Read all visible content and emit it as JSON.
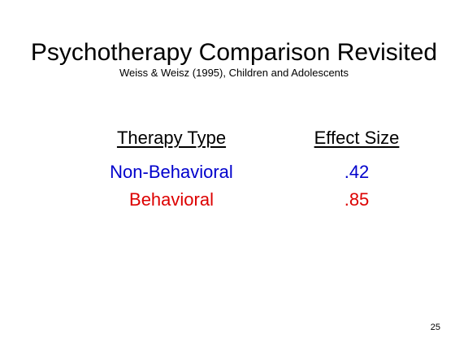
{
  "slide": {
    "title": "Psychotherapy Comparison Revisited",
    "subtitle": "Weiss & Weisz (1995), Children and Adolescents",
    "table": {
      "headers": {
        "therapy_type": "Therapy Type",
        "effect_size": "Effect Size"
      },
      "rows": [
        {
          "therapy_type": "Non-Behavioral",
          "effect_size": ".42",
          "color": "#0000cc"
        },
        {
          "therapy_type": "Behavioral",
          "effect_size": ".85",
          "color": "#dd0000"
        }
      ]
    },
    "page_number": "25"
  }
}
